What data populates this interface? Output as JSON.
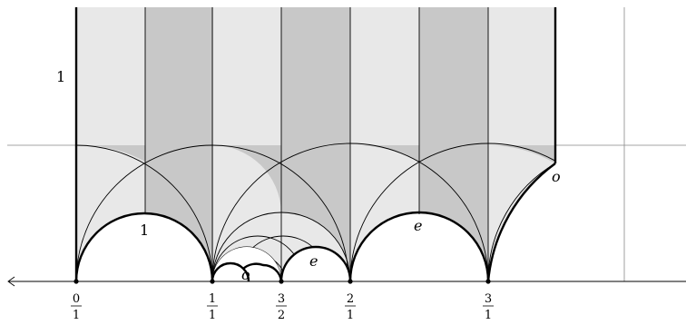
{
  "figure": {
    "height_label": "1",
    "region_labels": [
      {
        "key": "arch-0-1",
        "text": "1"
      },
      {
        "key": "arch-2-3",
        "text": "e"
      },
      {
        "key": "arch-1-3/2",
        "text": "o"
      },
      {
        "key": "arch-3/2-2",
        "text": "e"
      },
      {
        "key": "edge-right",
        "text": "o"
      }
    ],
    "axis_ticks": [
      {
        "value": 0,
        "num": "0",
        "den": "1"
      },
      {
        "value": 1,
        "num": "1",
        "den": "1"
      },
      {
        "value": 1.5,
        "num": "3",
        "den": "2"
      },
      {
        "value": 2,
        "num": "2",
        "den": "1"
      },
      {
        "value": 3,
        "num": "3",
        "den": "1"
      }
    ],
    "colors": {
      "light_fill": "#e8e8e8",
      "dark_fill": "#c8c8c8",
      "thin_line": "#000000",
      "grid_line": "#888888"
    }
  }
}
